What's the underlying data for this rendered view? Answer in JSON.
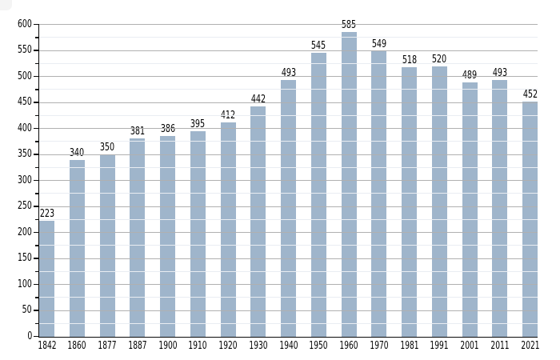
{
  "chart_data": {
    "type": "bar",
    "title": "",
    "xlabel": "",
    "ylabel": "",
    "categories": [
      "1842",
      "1860",
      "1877",
      "1887",
      "1900",
      "1910",
      "1920",
      "1930",
      "1940",
      "1950",
      "1960",
      "1970",
      "1981",
      "1991",
      "2001",
      "2011",
      "2021"
    ],
    "values": [
      223,
      340,
      350,
      381,
      386,
      395,
      412,
      442,
      493,
      545,
      585,
      549,
      518,
      520,
      489,
      493,
      452
    ],
    "ylim": [
      0,
      600
    ],
    "y_major_step": 50,
    "y_minor_step": 25,
    "y_tick_labels": [
      "0",
      "50",
      "100",
      "150",
      "200",
      "250",
      "300",
      "350",
      "400",
      "450",
      "500",
      "550",
      "600"
    ],
    "grid": true,
    "gridlines_over_bars": true,
    "legend_position": "none",
    "colors": {
      "bar": "#9fb5cb",
      "major_grid": "#b0b0b0",
      "minor_grid": "#e9edf2",
      "axis": "#0a0a0a",
      "text": "#000000",
      "background": "#ffffff"
    }
  }
}
